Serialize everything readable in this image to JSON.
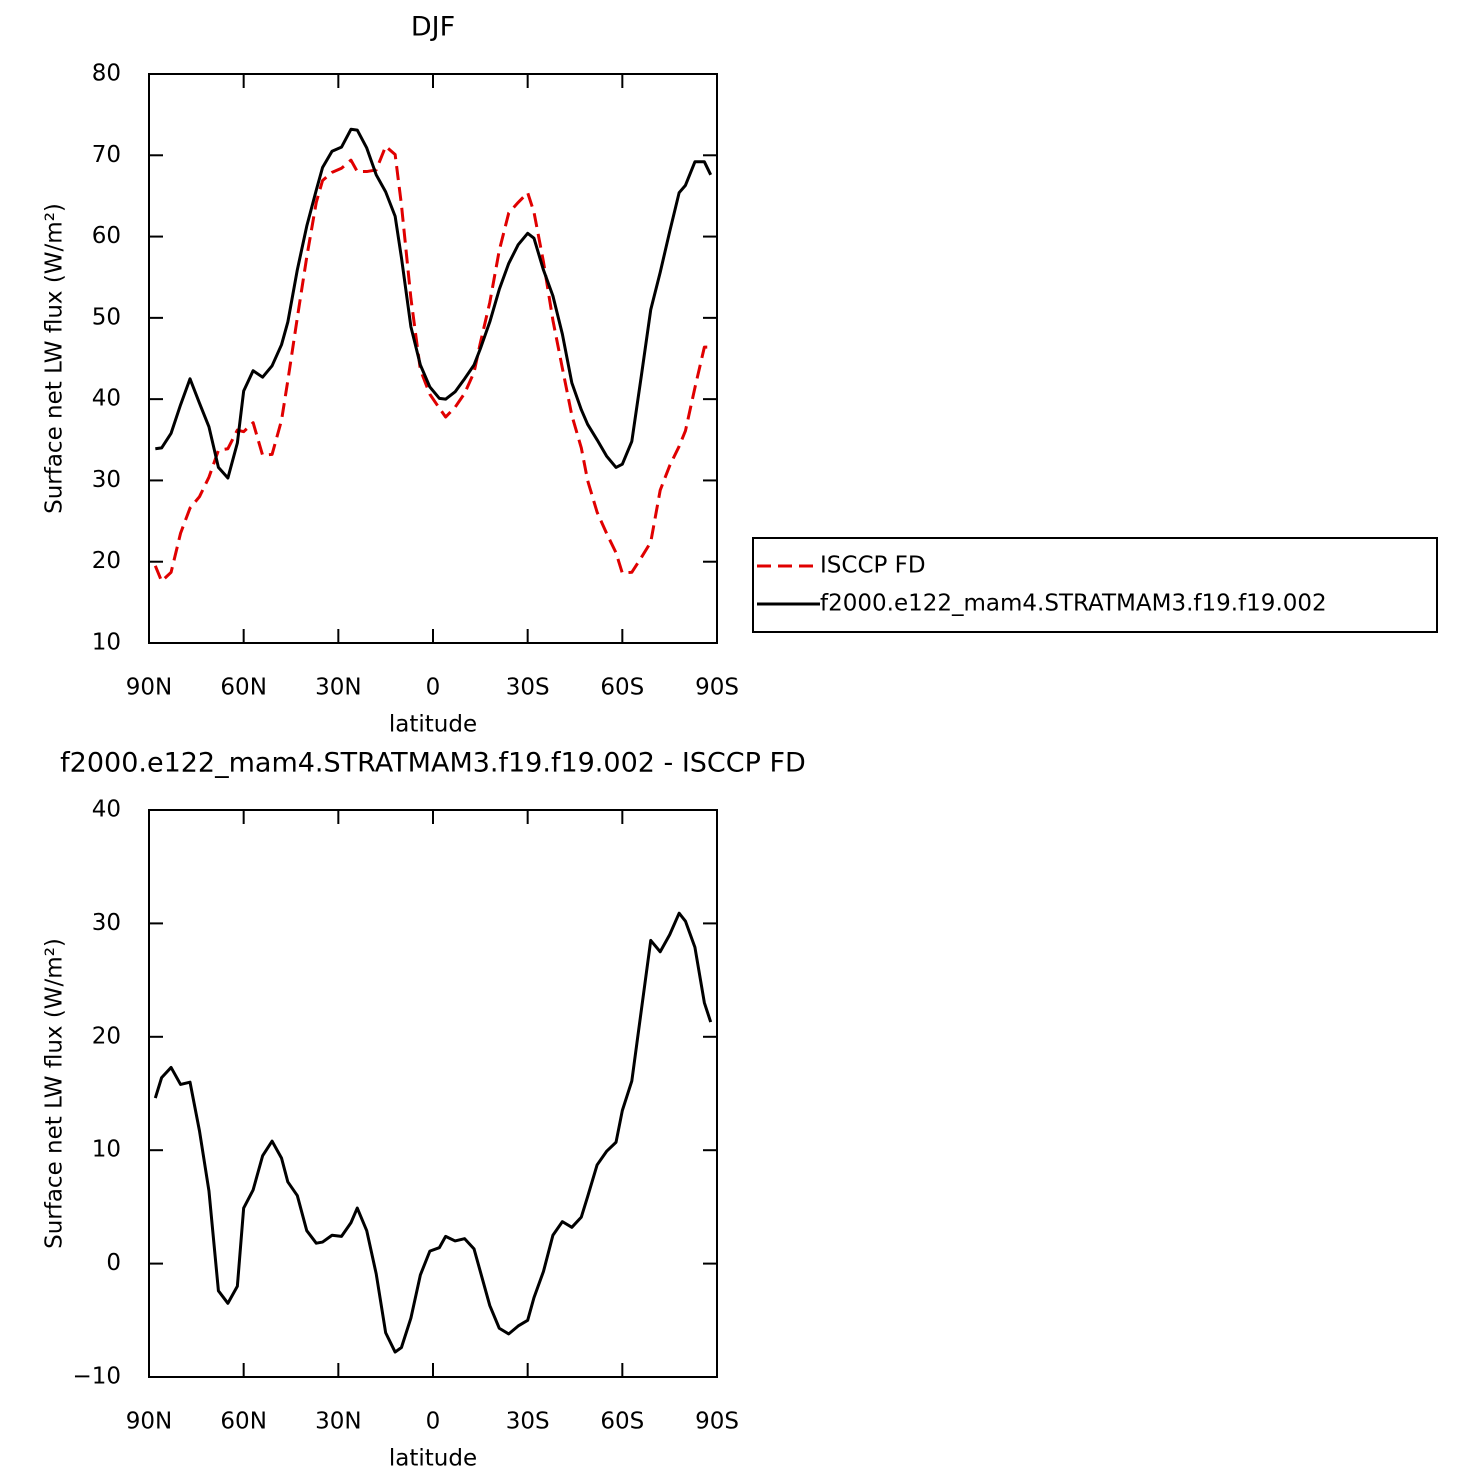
{
  "chart_data": [
    {
      "type": "line",
      "title": "DJF",
      "xlabel": "latitude",
      "ylabel": "Surface net LW flux (W/m²)",
      "xlim": [
        90,
        -90
      ],
      "xticks": [
        {
          "value": 90,
          "label": "90N"
        },
        {
          "value": 60,
          "label": "60N"
        },
        {
          "value": 30,
          "label": "30N"
        },
        0,
        {
          "value": -30,
          "label": "30S"
        },
        {
          "value": -60,
          "label": "60S"
        },
        {
          "value": -90,
          "label": "90S"
        }
      ],
      "ylim": [
        10,
        80
      ],
      "yticks": [
        10,
        20,
        30,
        40,
        50,
        60,
        70,
        80
      ],
      "x": [
        88,
        86,
        83,
        80,
        77,
        74,
        71,
        68,
        65,
        62,
        60,
        57,
        54,
        51,
        48,
        46,
        43,
        40,
        37,
        35,
        32,
        29,
        26,
        24,
        21,
        18,
        15,
        12,
        10,
        7,
        4,
        1,
        -2,
        -4,
        -7,
        -10,
        -13,
        -15,
        -18,
        -21,
        -24,
        -27,
        -30,
        -32,
        -35,
        -38,
        -41,
        -44,
        -47,
        -49,
        -52,
        -55,
        -58,
        -60,
        -63,
        -66,
        -69,
        -72,
        -75,
        -78,
        -80,
        -83,
        -86,
        -88
      ],
      "series": [
        {
          "name": "ISCCP FD",
          "color": "#e00000",
          "line_style": "dashed",
          "values": [
            19.5,
            17.6,
            18.7,
            23.5,
            26.6,
            28,
            30.4,
            33.7,
            33.9,
            36.2,
            36,
            37.1,
            33.1,
            33.2,
            37.4,
            42.3,
            50,
            57.5,
            64.2,
            66.9,
            67.9,
            68.4,
            69.4,
            68,
            68,
            68.2,
            71.1,
            70.1,
            63.9,
            52.4,
            43.6,
            40.6,
            38.9,
            37.8,
            39,
            40.7,
            43.3,
            46.9,
            51.9,
            58.3,
            62.9,
            64.2,
            65.4,
            63,
            56.9,
            49.7,
            43.8,
            38,
            34,
            30,
            26.1,
            23.5,
            21.1,
            18.6,
            18.7,
            20.5,
            22.4,
            28.8,
            31.8,
            34.2,
            36.1,
            41.4,
            46.4,
            46.4
          ]
        },
        {
          "name": "f2000.e122_mam4.STRATMAM3.f19.f19.002",
          "color": "#000000",
          "line_style": "solid",
          "values": [
            33.9,
            34,
            35.8,
            39.3,
            42.5,
            39.5,
            36.6,
            31.6,
            30.3,
            34.6,
            41,
            43.5,
            42.7,
            44.1,
            46.7,
            49.5,
            55.9,
            61.3,
            65.7,
            68.5,
            70.5,
            71,
            73.2,
            73.1,
            70.9,
            67.6,
            65.5,
            62.5,
            57.4,
            48.9,
            44.2,
            41.5,
            40.1,
            40,
            40.9,
            42.5,
            44.2,
            46.2,
            49.5,
            53.5,
            56.7,
            59,
            60.4,
            59.8,
            55.9,
            52.7,
            48,
            42,
            38.7,
            36.9,
            35,
            33,
            31.6,
            32,
            34.8,
            42.8,
            51,
            55.6,
            60.6,
            65.4,
            66.3,
            69.2,
            69.2,
            67.6
          ]
        }
      ]
    },
    {
      "type": "line",
      "title": "f2000.e122_mam4.STRATMAM3.f19.f19.002 - ISCCP FD",
      "xlabel": "latitude",
      "ylabel": "Surface net LW flux (W/m²)",
      "xlim": [
        90,
        -90
      ],
      "xticks": [
        {
          "value": 90,
          "label": "90N"
        },
        {
          "value": 60,
          "label": "60N"
        },
        {
          "value": 30,
          "label": "30N"
        },
        0,
        {
          "value": -30,
          "label": "30S"
        },
        {
          "value": -60,
          "label": "60S"
        },
        {
          "value": -90,
          "label": "90S"
        }
      ],
      "ylim": [
        -10,
        40
      ],
      "yticks": [
        {
          "value": -10,
          "label": "−10"
        },
        0,
        10,
        20,
        30,
        40
      ],
      "x": [
        88,
        86,
        83,
        80,
        77,
        74,
        71,
        68,
        65,
        62,
        60,
        57,
        54,
        51,
        48,
        46,
        43,
        40,
        37,
        35,
        32,
        29,
        26,
        24,
        21,
        18,
        15,
        12,
        10,
        7,
        4,
        1,
        -2,
        -4,
        -7,
        -10,
        -13,
        -15,
        -18,
        -21,
        -24,
        -27,
        -30,
        -32,
        -35,
        -38,
        -41,
        -44,
        -47,
        -49,
        -52,
        -55,
        -58,
        -60,
        -63,
        -66,
        -69,
        -72,
        -75,
        -78,
        -80,
        -83,
        -86,
        -88
      ],
      "series": [
        {
          "color": "#000000",
          "line_style": "solid",
          "values": [
            14.6,
            16.4,
            17.3,
            15.8,
            16,
            11.7,
            6.4,
            -2.4,
            -3.5,
            -2,
            4.9,
            6.5,
            9.5,
            10.8,
            9.3,
            7.2,
            6,
            2.9,
            1.8,
            1.9,
            2.5,
            2.4,
            3.6,
            4.9,
            2.9,
            -0.9,
            -6.1,
            -7.8,
            -7.4,
            -4.8,
            -1,
            1.1,
            1.4,
            2.4,
            2,
            2.2,
            1.3,
            -0.7,
            -3.7,
            -5.7,
            -6.2,
            -5.5,
            -5,
            -3,
            -0.7,
            2.5,
            3.7,
            3.2,
            4.1,
            5.9,
            8.7,
            9.9,
            10.7,
            13.5,
            16.1,
            22.3,
            28.5,
            27.5,
            29,
            30.9,
            30.2,
            27.9,
            23,
            21.3
          ]
        }
      ]
    }
  ]
}
